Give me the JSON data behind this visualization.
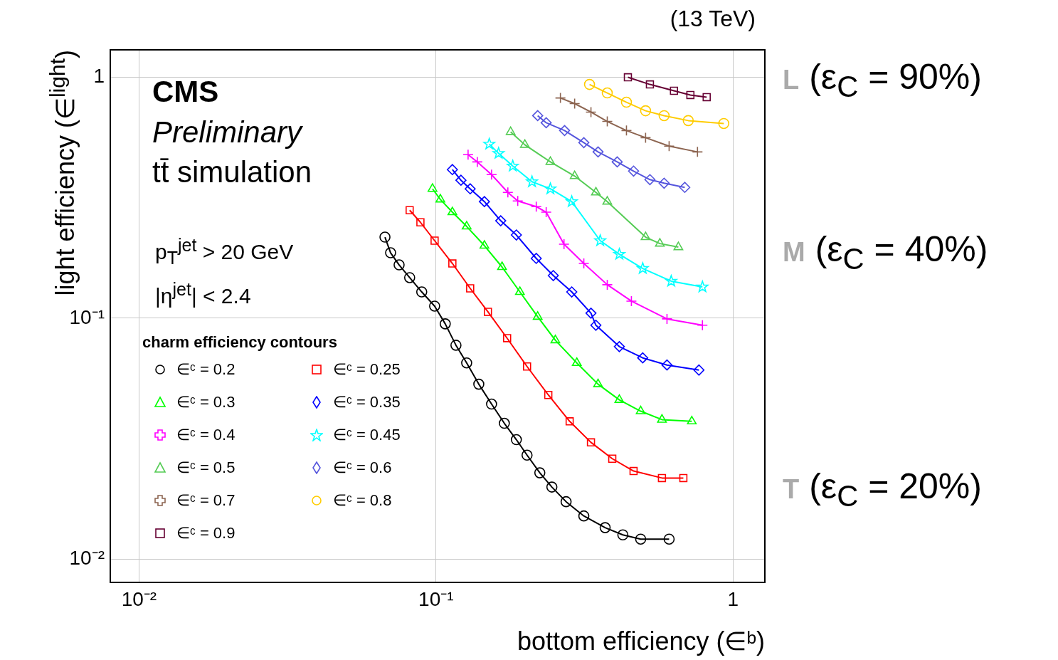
{
  "chart_data": {
    "type": "line",
    "xlabel": "bottom efficiency (∈ᵇ)",
    "ylabel": "light efficiency (∈$^{light}$)",
    "legend_title": "charm efficiency contours",
    "log": "xy",
    "grid": true,
    "legend": "bottom left",
    "line_style": "solid",
    "xlim": [
      0.008,
      1.28
    ],
    "ylim": [
      0.008,
      1.3
    ],
    "xticks": [
      {
        "value": 0.01,
        "label": "10⁻²"
      },
      {
        "value": 0.1,
        "label": "10⁻¹"
      },
      1
    ],
    "yticks": [
      {
        "value": 0.01,
        "label": "10⁻²"
      },
      {
        "value": 0.1,
        "label": "10⁻¹"
      },
      1
    ],
    "annotations": [
      "(13 TeV)",
      "CMS",
      "Preliminary",
      "tt̄ simulation",
      "p$_{T}$$^{jet}$ > 20 GeV",
      "|η$^{jet}$| < 2.4",
      "L (ε$_{C}$ = 90%)",
      "M (ε$_{C}$ = 40%)",
      "T (ε$_{C}$ = 20%)"
    ],
    "series": [
      {
        "name": "∈ᶜ = 0.2",
        "color": "#000000",
        "marker": "circle",
        "x": [
          0.0673,
          0.0703,
          0.0751,
          0.0815,
          0.0895,
          0.0989,
          0.1074,
          0.1167,
          0.1268,
          0.1393,
          0.1538,
          0.1698,
          0.1864,
          0.2025,
          0.2236,
          0.2455,
          0.2741,
          0.3145,
          0.371,
          0.4256,
          0.4887,
          0.6093
        ],
        "values": [
          0.217,
          0.1868,
          0.1664,
          0.1473,
          0.1285,
          0.1122,
          0.0947,
          0.0772,
          0.0652,
          0.0532,
          0.044,
          0.0366,
          0.0313,
          0.027,
          0.0228,
          0.0199,
          0.0173,
          0.0151,
          0.0135,
          0.0126,
          0.0121,
          0.0121
        ]
      },
      {
        "name": "∈ᶜ = 0.25",
        "color": "#ff0000",
        "marker": "square",
        "x": [
          0.0815,
          0.0886,
          0.0989,
          0.1135,
          0.1303,
          0.1495,
          0.1735,
          0.2025,
          0.2388,
          0.2818,
          0.3324,
          0.3921,
          0.4625,
          0.5764,
          0.6804
        ],
        "values": [
          0.2807,
          0.25,
          0.2098,
          0.1687,
          0.133,
          0.1063,
          0.0826,
          0.063,
          0.048,
          0.0373,
          0.0305,
          0.0261,
          0.0232,
          0.0217,
          0.0217
        ]
      },
      {
        "name": "∈ᶜ = 0.3",
        "color": "#00ff00",
        "marker": "triangle",
        "x": [
          0.0973,
          0.1034,
          0.1135,
          0.1268,
          0.1455,
          0.1668,
          0.1916,
          0.2199,
          0.2522,
          0.2978,
          0.3512,
          0.4142,
          0.4887,
          0.5764,
          0.7264
        ],
        "values": [
          0.3443,
          0.311,
          0.2754,
          0.2403,
          0.2,
          0.1631,
          0.1285,
          0.1014,
          0.081,
          0.0652,
          0.0532,
          0.0458,
          0.0411,
          0.0379,
          0.0373
        ]
      },
      {
        "name": "∈ᶜ = 0.35",
        "color": "#0000ff",
        "marker": "diamond",
        "x": [
          0.1135,
          0.1213,
          0.1303,
          0.1455,
          0.1651,
          0.1864,
          0.2175,
          0.2482,
          0.2864,
          0.3324,
          0.3453,
          0.4142,
          0.4966,
          0.5993,
          0.7677
        ],
        "values": [
          0.4138,
          0.3737,
          0.3443,
          0.3047,
          0.2537,
          0.2215,
          0.177,
          0.1503,
          0.1285,
          0.1049,
          0.0935,
          0.0762,
          0.0684,
          0.0639,
          0.0609
        ]
      },
      {
        "name": "∈ᶜ = 0.4",
        "color": "#ff00ff",
        "marker": "cross",
        "x": [
          0.1282,
          0.1377,
          0.1538,
          0.1745,
          0.1884,
          0.2175,
          0.2349,
          0.2697,
          0.3145,
          0.3772,
          0.4548,
          0.5993,
          0.7889
        ],
        "values": [
          0.477,
          0.4453,
          0.3944,
          0.3327,
          0.3066,
          0.2904,
          0.2754,
          0.2027,
          0.1687,
          0.1377,
          0.1177,
          0.0993,
          0.0935
        ]
      },
      {
        "name": "∈ᶜ = 0.45",
        "color": "#00ffff",
        "marker": "star",
        "x": [
          0.1511,
          0.1624,
          0.1813,
          0.2104,
          0.2427,
          0.2864,
          0.3571,
          0.4142,
          0.4966,
          0.6193,
          0.7889
        ],
        "values": [
          0.528,
          0.4834,
          0.428,
          0.3685,
          0.3443,
          0.3047,
          0.2098,
          0.1842,
          0.1608,
          0.1424,
          0.1348
        ]
      },
      {
        "name": "∈ᶜ = 0.5",
        "color": "#55cc55",
        "marker": "triangle",
        "x": [
          0.1783,
          0.1991,
          0.2427,
          0.2929,
          0.3453,
          0.3772,
          0.5077,
          0.5671,
          0.6546
        ],
        "values": [
          0.5929,
          0.5245,
          0.4453,
          0.389,
          0.3327,
          0.3047,
          0.217,
          0.204,
          0.1972
        ]
      },
      {
        "name": "∈ᶜ = 0.6",
        "color": "#5555dd",
        "marker": "diamond",
        "x": [
          0.2199,
          0.2349,
          0.2709,
          0.3145,
          0.3512,
          0.4074,
          0.4625,
          0.525,
          0.5861,
          0.6879
        ],
        "values": [
          0.693,
          0.6475,
          0.601,
          0.5355,
          0.49,
          0.4453,
          0.408,
          0.376,
          0.3634,
          0.349
        ]
      },
      {
        "name": "∈ᶜ = 0.7",
        "color": "#8c6450",
        "marker": "cross",
        "x": [
          0.2623,
          0.2929,
          0.3324,
          0.3772,
          0.4377,
          0.5077,
          0.6093,
          0.7592
        ],
        "values": [
          0.8207,
          0.7776,
          0.717,
          0.6557,
          0.601,
          0.5614,
          0.5176,
          0.49
        ]
      },
      {
        "name": "∈ᶜ = 0.8",
        "color": "#ffcc00",
        "marker": "circle",
        "x": [
          0.3287,
          0.3772,
          0.4377,
          0.5077,
          0.5861,
          0.7068,
          0.9309
        ],
        "values": [
          0.934,
          0.861,
          0.788,
          0.726,
          0.693,
          0.661,
          0.643
        ]
      },
      {
        "name": "∈ᶜ = 0.9",
        "color": "#660033",
        "marker": "square",
        "x": [
          0.4426,
          0.525,
          0.6327,
          0.7185,
          0.8153
        ],
        "values": [
          1.0,
          0.934,
          0.879,
          0.844,
          0.827
        ]
      }
    ]
  }
}
